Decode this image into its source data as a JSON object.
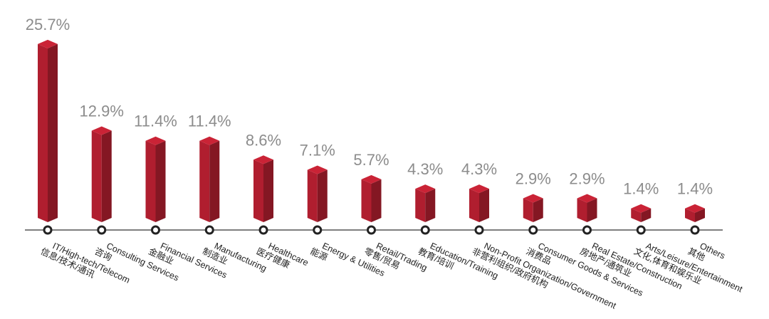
{
  "chart_data": {
    "type": "bar3d",
    "categories": [
      "IT/High-tech/Telecom",
      "Consulting Services",
      "Financial Services",
      "Manufacturing",
      "Healthcare",
      "Energy & Utilities",
      "Retail/Trading",
      "Education/Training",
      "Non-Profit Organization/Government",
      "Consumer Goods & Services",
      "Real Estate/Construction",
      "Arts/Leisure/Entertainment",
      "Others"
    ],
    "categories_zh": [
      "信息/技术/通讯",
      "咨询",
      "金融业",
      "制造业",
      "医疗健康",
      "能源",
      "零售/贸易",
      "教育/培训",
      "非营利组织/政府机构",
      "消费品",
      "房地产/通筑业",
      "文化,体育和娱乐业",
      "其他"
    ],
    "values": [
      25.7,
      12.9,
      11.4,
      11.4,
      8.6,
      7.1,
      5.7,
      4.3,
      4.3,
      2.9,
      2.9,
      1.4,
      1.4
    ],
    "value_labels": [
      "25.7%",
      "12.9%",
      "11.4%",
      "11.4%",
      "8.6%",
      "7.1%",
      "5.7%",
      "4.3%",
      "4.3%",
      "2.9%",
      "2.9%",
      "1.4%",
      "1.4%"
    ],
    "color": "#b01e2f"
  }
}
